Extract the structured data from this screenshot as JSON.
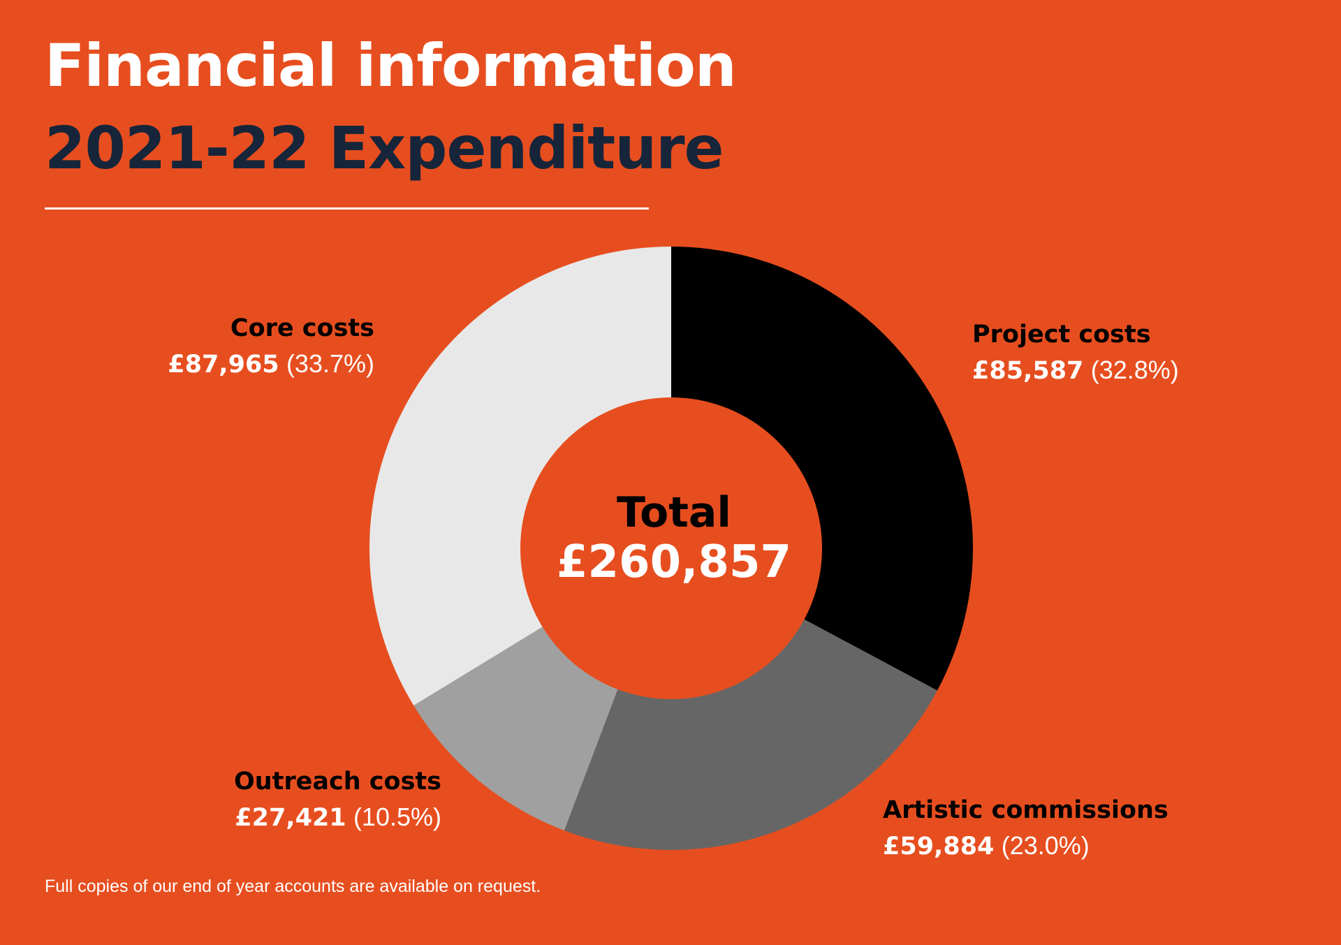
{
  "header": {
    "title": "Financial information",
    "subtitle": "2021-22 Expenditure"
  },
  "colors": {
    "background": "#E74E1F",
    "title": "#FFFFFF",
    "subtitle": "#17253A",
    "segments": [
      "#000000",
      "#666666",
      "#A0A0A0",
      "#E8E8E8"
    ]
  },
  "chart_data": {
    "type": "pie",
    "variant": "donut",
    "title": "",
    "categories": [
      "Project costs",
      "Artistic commissions",
      "Outreach costs",
      "Core costs"
    ],
    "values": [
      85587,
      59884,
      27421,
      87965
    ],
    "value_labels": [
      "£85,587",
      "£59,884",
      "£27,421",
      "£87,965"
    ],
    "percent_labels": [
      "(32.8%)",
      "(23.0%)",
      "(10.5%)",
      "(33.7%)"
    ],
    "center": {
      "title": "Total",
      "value": "£260,857"
    },
    "order": "clockwise from top",
    "legend": "none"
  },
  "footnote": "Full copies of our end of year accounts are available on request."
}
